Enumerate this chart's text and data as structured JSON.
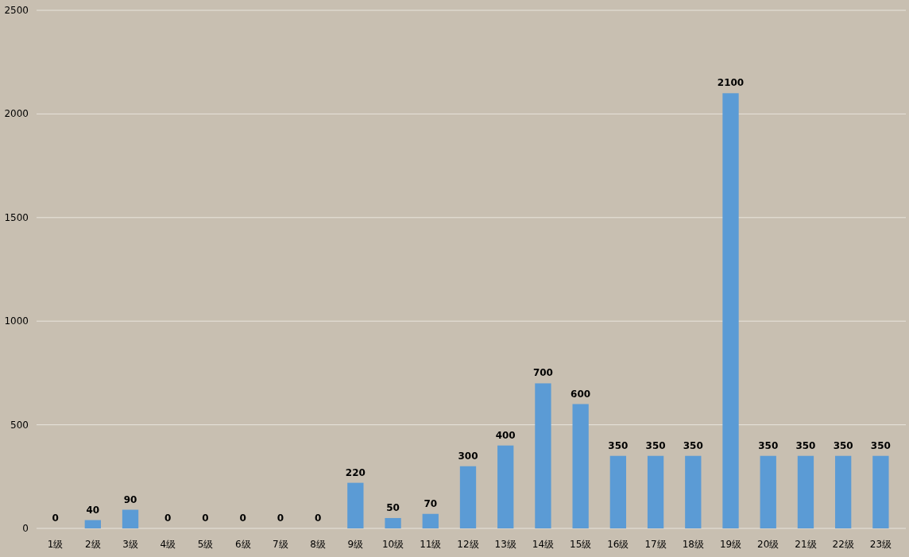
{
  "chart_data": {
    "type": "bar",
    "categories": [
      "1级",
      "2级",
      "3级",
      "4级",
      "5级",
      "6级",
      "7级",
      "8级",
      "9级",
      "10级",
      "11级",
      "12级",
      "13级",
      "14级",
      "15级",
      "16级",
      "17级",
      "18级",
      "19级",
      "20级",
      "21级",
      "22级",
      "23级"
    ],
    "values": [
      0,
      40,
      90,
      0,
      0,
      0,
      0,
      0,
      220,
      50,
      70,
      300,
      400,
      700,
      600,
      350,
      350,
      350,
      2100,
      350,
      350,
      350,
      350
    ],
    "color": "#5b9bd5",
    "ylim": [
      0,
      2500
    ],
    "yticks": [
      0,
      500,
      1000,
      1500,
      2000,
      2500
    ],
    "grid": "y",
    "data_labels": true
  }
}
